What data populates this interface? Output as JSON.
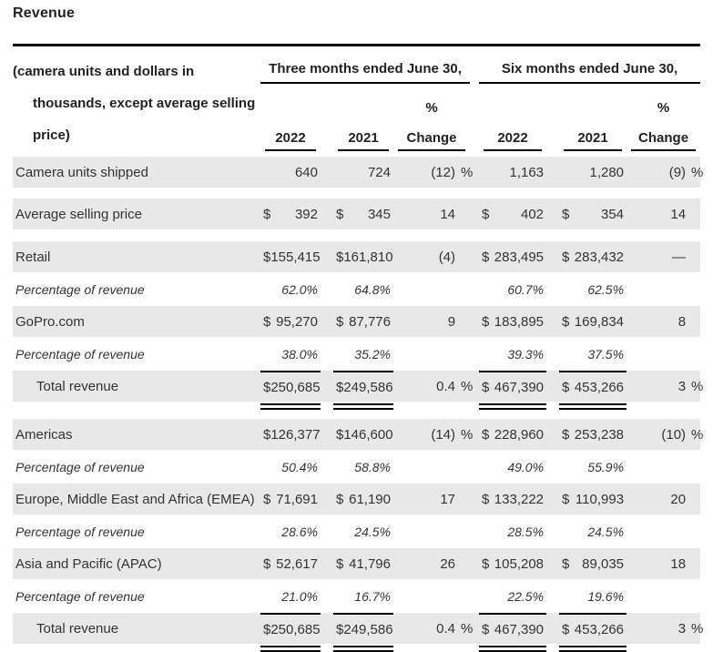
{
  "page": {
    "title": "Revenue"
  },
  "colors": {
    "band": "#e8e8e8",
    "text": "#333333",
    "line": "#000000"
  },
  "table": {
    "row_label_header": "(camera units and dollars in thousands, except average selling price)",
    "groups": [
      {
        "label": "Three months ended June 30,"
      },
      {
        "label": "Six months ended June 30,"
      }
    ],
    "pct_header": "%",
    "col_headers": [
      "2022",
      "2021",
      "Change",
      "2022",
      "2021",
      "Change"
    ],
    "rows": [
      {
        "label": "Camera units shipped",
        "type": "data",
        "spacer_after": 12,
        "cells": [
          {
            "v": "640"
          },
          {
            "v": "724"
          },
          {
            "v": "(12)",
            "p": "%"
          },
          {
            "v": "1,163"
          },
          {
            "v": "1,280"
          },
          {
            "v": "(9)",
            "p": "%"
          }
        ]
      },
      {
        "label": "Average selling price",
        "type": "data",
        "spacer_after": 13,
        "cells": [
          {
            "c": "$",
            "v": "392"
          },
          {
            "c": "$",
            "v": "345"
          },
          {
            "v": "14"
          },
          {
            "c": "$",
            "v": "402"
          },
          {
            "c": "$",
            "v": "354"
          },
          {
            "v": "14"
          }
        ]
      },
      {
        "label": "Retail",
        "type": "data",
        "cells": [
          {
            "c": "$",
            "v": "155,415"
          },
          {
            "c": "$",
            "v": "161,810"
          },
          {
            "v": "(4)"
          },
          {
            "c": "$",
            "v": "283,495"
          },
          {
            "c": "$",
            "v": "283,432"
          },
          {
            "v": "—"
          }
        ]
      },
      {
        "label": "Percentage of revenue",
        "type": "percent",
        "cells": [
          {
            "v": "62.0%"
          },
          {
            "v": "64.8%"
          },
          {},
          {
            "v": "60.7%"
          },
          {
            "v": "62.5%"
          },
          {}
        ]
      },
      {
        "label": "GoPro.com",
        "type": "data",
        "cells": [
          {
            "c": "$",
            "v": "95,270"
          },
          {
            "c": "$",
            "v": "87,776"
          },
          {
            "v": "9"
          },
          {
            "c": "$",
            "v": "183,895"
          },
          {
            "c": "$",
            "v": "169,834"
          },
          {
            "v": "8"
          }
        ]
      },
      {
        "label": "Percentage of revenue",
        "type": "percent",
        "cells": [
          {
            "v": "38.0%"
          },
          {
            "v": "35.2%"
          },
          {},
          {
            "v": "39.3%"
          },
          {
            "v": "37.5%"
          },
          {}
        ]
      },
      {
        "label": "Total revenue",
        "type": "total",
        "spacer_after": 19,
        "cells": [
          {
            "c": "$",
            "v": "250,685"
          },
          {
            "c": "$",
            "v": "249,586"
          },
          {
            "v": "0.4",
            "p": "%"
          },
          {
            "c": "$",
            "v": "467,390"
          },
          {
            "c": "$",
            "v": "453,266"
          },
          {
            "v": "3",
            "p": "%"
          }
        ]
      },
      {
        "label": "Americas",
        "type": "data",
        "cells": [
          {
            "c": "$",
            "v": "126,377"
          },
          {
            "c": "$",
            "v": "146,600"
          },
          {
            "v": "(14)",
            "p": "%"
          },
          {
            "c": "$",
            "v": "228,960"
          },
          {
            "c": "$",
            "v": "253,238"
          },
          {
            "v": "(10)",
            "p": "%"
          }
        ]
      },
      {
        "label": "Percentage of revenue",
        "type": "percent",
        "cells": [
          {
            "v": "50.4%"
          },
          {
            "v": "58.8%"
          },
          {},
          {
            "v": "49.0%"
          },
          {
            "v": "55.9%"
          },
          {}
        ]
      },
      {
        "label": "Europe, Middle East and Africa (EMEA)",
        "type": "data",
        "cells": [
          {
            "c": "$",
            "v": "71,691"
          },
          {
            "c": "$",
            "v": "61,190"
          },
          {
            "v": "17"
          },
          {
            "c": "$",
            "v": "133,222"
          },
          {
            "c": "$",
            "v": "110,993"
          },
          {
            "v": "20"
          }
        ]
      },
      {
        "label": "Percentage of revenue",
        "type": "percent",
        "cells": [
          {
            "v": "28.6%"
          },
          {
            "v": "24.5%"
          },
          {},
          {
            "v": "28.5%"
          },
          {
            "v": "24.5%"
          },
          {}
        ]
      },
      {
        "label": "Asia and Pacific (APAC)",
        "type": "data",
        "cells": [
          {
            "c": "$",
            "v": "52,617"
          },
          {
            "c": "$",
            "v": "41,796"
          },
          {
            "v": "26"
          },
          {
            "c": "$",
            "v": "105,208"
          },
          {
            "c": "$",
            "v": "89,035"
          },
          {
            "v": "18"
          }
        ]
      },
      {
        "label": "Percentage of revenue",
        "type": "percent",
        "cells": [
          {
            "v": "21.0%"
          },
          {
            "v": "16.7%"
          },
          {},
          {
            "v": "22.5%"
          },
          {
            "v": "19.6%"
          },
          {}
        ]
      },
      {
        "label": "Total revenue",
        "type": "total",
        "cells": [
          {
            "c": "$",
            "v": "250,685"
          },
          {
            "c": "$",
            "v": "249,586"
          },
          {
            "v": "0.4",
            "p": "%"
          },
          {
            "c": "$",
            "v": "467,390"
          },
          {
            "c": "$",
            "v": "453,266"
          },
          {
            "v": "3",
            "p": "%"
          }
        ]
      }
    ]
  }
}
